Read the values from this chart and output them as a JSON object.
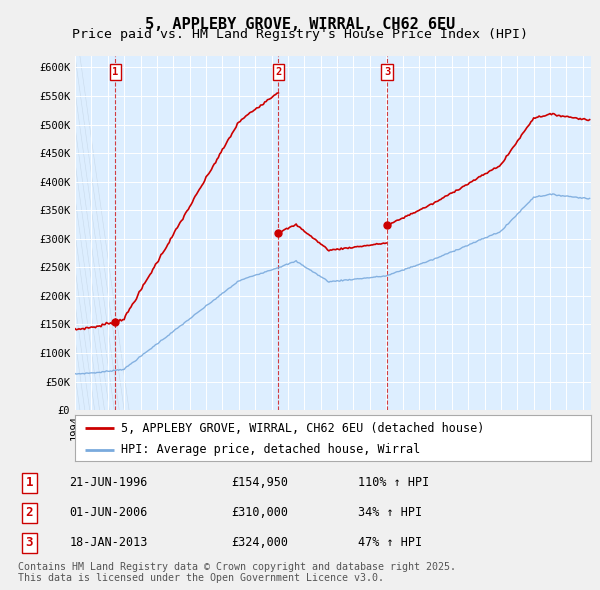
{
  "title": "5, APPLEBY GROVE, WIRRAL, CH62 6EU",
  "subtitle": "Price paid vs. HM Land Registry's House Price Index (HPI)",
  "ylim": [
    0,
    620000
  ],
  "yticks": [
    0,
    50000,
    100000,
    150000,
    200000,
    250000,
    300000,
    350000,
    400000,
    450000,
    500000,
    550000,
    600000
  ],
  "ytick_labels": [
    "£0",
    "£50K",
    "£100K",
    "£150K",
    "£200K",
    "£250K",
    "£300K",
    "£350K",
    "£400K",
    "£450K",
    "£500K",
    "£550K",
    "£600K"
  ],
  "xlim_start": 1994.0,
  "xlim_end": 2025.5,
  "sale_color": "#cc0000",
  "hpi_color": "#7aaadd",
  "chart_bg": "#ddeeff",
  "fig_bg": "#f0f0f0",
  "grid_color": "#ffffff",
  "sales": [
    {
      "year": 1996.47,
      "price": 154950,
      "label": "1"
    },
    {
      "year": 2006.42,
      "price": 310000,
      "label": "2"
    },
    {
      "year": 2013.05,
      "price": 324000,
      "label": "3"
    }
  ],
  "legend_entries": [
    {
      "label": "5, APPLEBY GROVE, WIRRAL, CH62 6EU (detached house)",
      "color": "#cc0000"
    },
    {
      "label": "HPI: Average price, detached house, Wirral",
      "color": "#7aaadd"
    }
  ],
  "table_rows": [
    {
      "num": "1",
      "date": "21-JUN-1996",
      "price": "£154,950",
      "change": "110% ↑ HPI"
    },
    {
      "num": "2",
      "date": "01-JUN-2006",
      "price": "£310,000",
      "change": "34% ↑ HPI"
    },
    {
      "num": "3",
      "date": "18-JAN-2013",
      "price": "£324,000",
      "change": "47% ↑ HPI"
    }
  ],
  "footnote": "Contains HM Land Registry data © Crown copyright and database right 2025.\nThis data is licensed under the Open Government Licence v3.0.",
  "title_fontsize": 11,
  "subtitle_fontsize": 9.5,
  "tick_fontsize": 7.5,
  "legend_fontsize": 8.5,
  "table_fontsize": 8.5,
  "footnote_fontsize": 7.2
}
